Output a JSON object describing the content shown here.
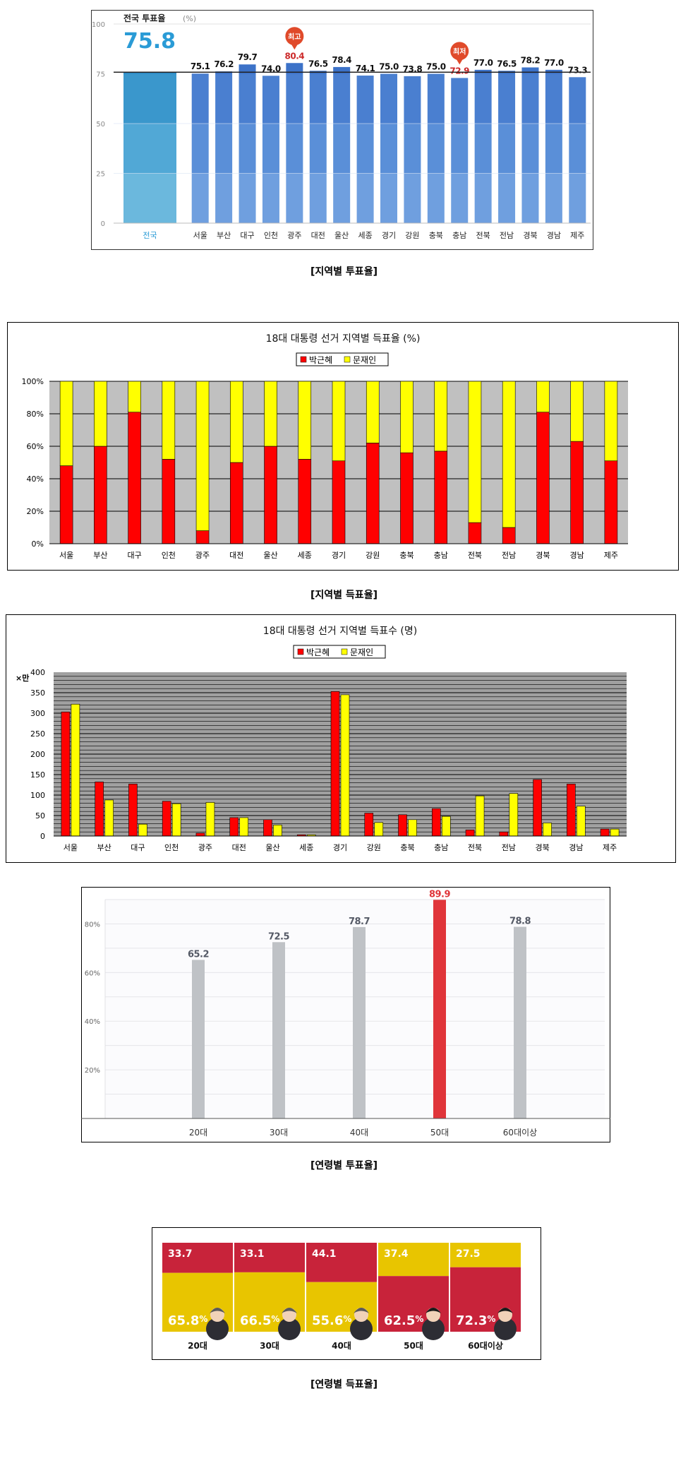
{
  "turnout_region": {
    "caption": "[지역별 투표율]",
    "national_label": "전국 투표율",
    "national_unit": "(%)",
    "national_value": 75.8,
    "national_category": "전국",
    "max_badge": "최고",
    "min_badge": "최저",
    "colors": {
      "bar": "#4a7fd0",
      "national": "#3a97c8",
      "accent": "#2a9bd6",
      "highlight": "#cc2a2a"
    },
    "chart_data": {
      "type": "bar",
      "categories": [
        "서울",
        "부산",
        "대구",
        "인천",
        "광주",
        "대전",
        "울산",
        "세종",
        "경기",
        "강원",
        "충북",
        "충남",
        "전북",
        "전남",
        "경북",
        "경남",
        "제주"
      ],
      "values": [
        75.1,
        76.2,
        79.7,
        74.0,
        80.4,
        76.5,
        78.4,
        74.1,
        75.0,
        73.8,
        75.0,
        72.9,
        77.0,
        76.5,
        78.2,
        77.0,
        73.3
      ],
      "value_labels": [
        "75.1",
        "76.2",
        "79.7",
        "74.0",
        "80.4",
        "76.5",
        "78.4",
        "74.1",
        "75.0",
        "73.8",
        "75.0",
        "72.9",
        "77.0",
        "76.5",
        "78.2",
        "77.0",
        "73.3"
      ],
      "yticks": [
        "0",
        "25",
        "50",
        "75",
        "100"
      ],
      "ylim": [
        0,
        100
      ],
      "reference_line": 75.8,
      "grid": true
    }
  },
  "share_region": {
    "caption": "[지역별 득표율]",
    "colors": {
      "park": "#ff0000",
      "moon": "#ffff00",
      "plot_bg": "#c0c0c0"
    },
    "chart_data": {
      "type": "bar",
      "stacked": true,
      "title": "18대 대통령 선거 지역별 득표율 (%)",
      "categories": [
        "서울",
        "부산",
        "대구",
        "인천",
        "광주",
        "대전",
        "울산",
        "세종",
        "경기",
        "강원",
        "충북",
        "충남",
        "전북",
        "전남",
        "경북",
        "경남",
        "제주"
      ],
      "series": [
        {
          "name": "박근혜",
          "values": [
            48,
            60,
            81,
            52,
            8,
            50,
            60,
            52,
            51,
            62,
            56,
            57,
            13,
            10,
            81,
            63,
            51
          ]
        },
        {
          "name": "문재인",
          "values": [
            52,
            40,
            19,
            48,
            92,
            50,
            40,
            48,
            49,
            38,
            44,
            43,
            87,
            90,
            19,
            37,
            49
          ]
        }
      ],
      "yticks": [
        "0%",
        "20%",
        "40%",
        "60%",
        "80%",
        "100%"
      ],
      "ylim": [
        0,
        100
      ],
      "legend": "top-center",
      "grid": true
    }
  },
  "votes_region": {
    "colors": {
      "park": "#ff0000",
      "moon": "#ffff00",
      "plot_bg": "#a0a0a0"
    },
    "chart_data": {
      "type": "bar",
      "title": "18대 대통령 선거 지역별 득표수 (명)",
      "ylabel": "×만",
      "categories": [
        "서울",
        "부산",
        "대구",
        "인천",
        "광주",
        "대전",
        "울산",
        "세종",
        "경기",
        "강원",
        "충북",
        "충남",
        "전북",
        "전남",
        "경북",
        "경남",
        "제주"
      ],
      "series": [
        {
          "name": "박근혜",
          "values": [
            303,
            132,
            127,
            85,
            7,
            45,
            40,
            3,
            353,
            56,
            52,
            67,
            15,
            10,
            138,
            127,
            17
          ]
        },
        {
          "name": "문재인",
          "values": [
            322,
            88,
            29,
            79,
            82,
            45,
            27,
            3,
            345,
            33,
            40,
            48,
            98,
            104,
            32,
            73,
            17
          ]
        }
      ],
      "yticks": [
        "0",
        "50",
        "100",
        "150",
        "200",
        "250",
        "300",
        "350",
        "400"
      ],
      "ylim": [
        0,
        400
      ],
      "legend": "top-center",
      "grid": true
    }
  },
  "turnout_age": {
    "caption": "[연령별 투표율]",
    "colors": {
      "bar": "#bfc2c6",
      "highlight": "#e0353a",
      "label": "#555a66"
    },
    "chart_data": {
      "type": "bar",
      "categories": [
        "20대",
        "30대",
        "40대",
        "50대",
        "60대이상"
      ],
      "values": [
        65.2,
        72.5,
        78.7,
        89.9,
        78.8
      ],
      "value_labels": [
        "65.2",
        "72.5",
        "78.7",
        "89.9",
        "78.8"
      ],
      "highlight_index": 3,
      "yticks": [
        "20%",
        "40%",
        "60%",
        "80%"
      ],
      "ylim": [
        0,
        90
      ],
      "grid": true
    }
  },
  "share_age": {
    "caption": "[연령별 득표율]",
    "colors": {
      "red": "#c8233a",
      "yellow": "#e8c500"
    },
    "chart_data": {
      "type": "bar",
      "stacked": true,
      "categories": [
        "20대",
        "30대",
        "40대",
        "50대",
        "60대이상"
      ],
      "winner_values": [
        65.8,
        66.5,
        55.6,
        62.5,
        72.3
      ],
      "winner_labels": [
        "65.8",
        "66.5",
        "55.6",
        "62.5",
        "72.3"
      ],
      "loser_values": [
        33.7,
        33.1,
        44.1,
        37.4,
        27.5
      ],
      "loser_labels": [
        "33.7",
        "33.1",
        "44.1",
        "37.4",
        "27.5"
      ],
      "winner_colors": [
        "yellow",
        "yellow",
        "yellow",
        "red",
        "red"
      ],
      "percent_sign": "%"
    }
  }
}
